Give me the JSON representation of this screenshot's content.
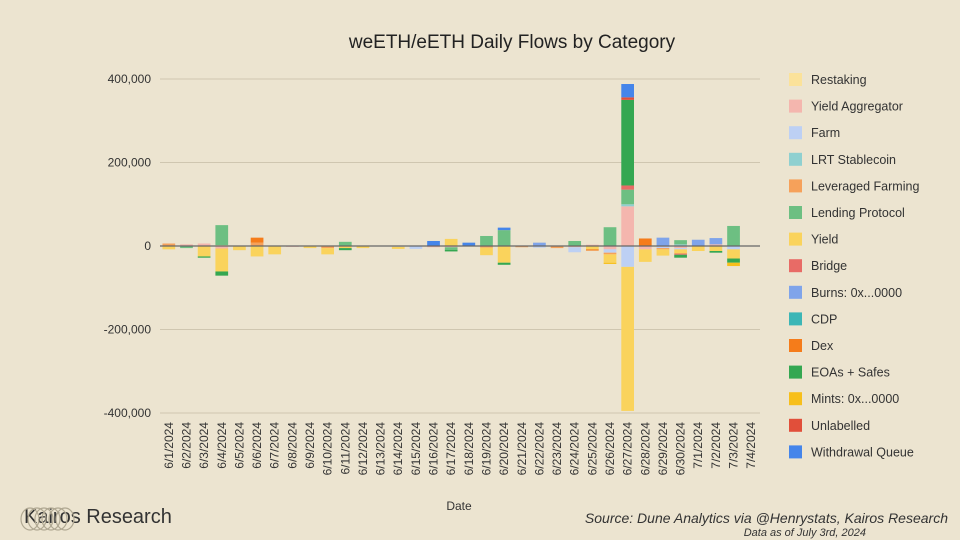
{
  "chart_data": {
    "type": "bar",
    "stacked": true,
    "title": "weETH/eETH Daily Flows by Category",
    "xlabel": "Date",
    "ylabel": "",
    "ylim": [
      -400000,
      400000
    ],
    "yticks": [
      400000,
      200000,
      0,
      -200000,
      -400000
    ],
    "ytick_labels": [
      "400,000",
      "200,000",
      "0",
      "-200,000",
      "-400,000"
    ],
    "grid": true,
    "legend_position": "right",
    "categories": [
      "6/1/2024",
      "6/2/2024",
      "6/3/2024",
      "6/4/2024",
      "6/5/2024",
      "6/6/2024",
      "6/7/2024",
      "6/8/2024",
      "6/9/2024",
      "6/10/2024",
      "6/11/2024",
      "6/12/2024",
      "6/13/2024",
      "6/14/2024",
      "6/15/2024",
      "6/16/2024",
      "6/17/2024",
      "6/18/2024",
      "6/19/2024",
      "6/20/2024",
      "6/21/2024",
      "6/22/2024",
      "6/23/2024",
      "6/24/2024",
      "6/25/2024",
      "6/26/2024",
      "6/27/2024",
      "6/28/2024",
      "6/29/2024",
      "6/30/2024",
      "7/1/2024",
      "7/2/2024",
      "7/3/2024",
      "7/4/2024"
    ],
    "series": [
      {
        "name": "Restaking",
        "color": "#fbe29a",
        "values": [
          0,
          0,
          0,
          2000,
          0,
          0,
          0,
          0,
          0,
          0,
          0,
          0,
          0,
          0,
          0,
          0,
          0,
          0,
          0,
          0,
          0,
          0,
          0,
          0,
          0,
          0,
          0,
          0,
          0,
          0,
          0,
          0,
          0,
          0
        ]
      },
      {
        "name": "Yield Aggregator",
        "color": "#f4b6ae",
        "values": [
          0,
          4000,
          6000,
          -6000,
          0,
          0,
          0,
          -2000,
          0,
          0,
          0,
          0,
          0,
          0,
          0,
          -3000,
          -3000,
          0,
          0,
          0,
          0,
          0,
          0,
          -3000,
          3000,
          -8000,
          95000,
          -8000,
          -2000,
          -5000,
          0,
          4000,
          0,
          0
        ]
      },
      {
        "name": "Farm",
        "color": "#bdd0f4",
        "values": [
          0,
          0,
          0,
          0,
          0,
          0,
          0,
          0,
          0,
          0,
          0,
          0,
          0,
          -2000,
          -7000,
          0,
          0,
          0,
          0,
          0,
          0,
          -4000,
          0,
          -12000,
          0,
          -8000,
          -50000,
          0,
          -3000,
          -3000,
          0,
          0,
          -8000,
          0
        ]
      },
      {
        "name": "LRT Stablecoin",
        "color": "#8fd0d0",
        "values": [
          0,
          0,
          0,
          0,
          0,
          0,
          0,
          0,
          0,
          0,
          0,
          0,
          0,
          0,
          0,
          0,
          0,
          0,
          0,
          0,
          0,
          0,
          0,
          0,
          0,
          0,
          5000,
          0,
          0,
          4000,
          0,
          0,
          0,
          0
        ]
      },
      {
        "name": "Leveraged Farming",
        "color": "#f6a15a",
        "values": [
          6000,
          0,
          0,
          0,
          0,
          8000,
          0,
          0,
          0,
          -5000,
          0,
          0,
          0,
          0,
          0,
          0,
          0,
          0,
          -4000,
          0,
          -3000,
          0,
          -5000,
          0,
          0,
          -4000,
          0,
          0,
          -3000,
          0,
          0,
          0,
          0,
          0
        ]
      },
      {
        "name": "Lending Protocol",
        "color": "#6dbf82",
        "values": [
          0,
          -5000,
          0,
          48000,
          0,
          0,
          0,
          0,
          0,
          0,
          10000,
          0,
          0,
          0,
          0,
          0,
          -6000,
          0,
          24000,
          38000,
          0,
          0,
          0,
          12000,
          0,
          45000,
          35000,
          0,
          0,
          10000,
          0,
          0,
          48000,
          0
        ]
      },
      {
        "name": "Yield",
        "color": "#fad35c",
        "values": [
          -8000,
          0,
          -25000,
          -55000,
          -10000,
          -25000,
          -20000,
          0,
          -5000,
          -15000,
          -5000,
          -5000,
          0,
          -5000,
          0,
          0,
          17000,
          0,
          -18000,
          -40000,
          0,
          0,
          0,
          0,
          -8000,
          -20000,
          -345000,
          -30000,
          -15000,
          -10000,
          -12000,
          -12000,
          -22000,
          0
        ]
      },
      {
        "name": "Bridge",
        "color": "#e86b66",
        "values": [
          0,
          0,
          0,
          0,
          0,
          0,
          0,
          0,
          0,
          0,
          0,
          0,
          0,
          0,
          0,
          0,
          0,
          0,
          0,
          0,
          0,
          0,
          0,
          0,
          0,
          0,
          10000,
          0,
          0,
          -3000,
          0,
          0,
          0,
          0
        ]
      },
      {
        "name": "Burns: 0x...0000",
        "color": "#7fa4ea",
        "values": [
          0,
          0,
          0,
          0,
          0,
          0,
          0,
          0,
          0,
          0,
          0,
          0,
          0,
          0,
          0,
          0,
          0,
          0,
          0,
          0,
          0,
          8000,
          0,
          0,
          0,
          0,
          0,
          0,
          20000,
          0,
          15000,
          15000,
          0,
          0
        ]
      },
      {
        "name": "CDP",
        "color": "#3cb6b6",
        "values": [
          0,
          0,
          0,
          0,
          0,
          0,
          0,
          0,
          0,
          0,
          0,
          0,
          0,
          0,
          0,
          0,
          0,
          0,
          0,
          0,
          0,
          0,
          0,
          0,
          0,
          0,
          0,
          0,
          0,
          0,
          0,
          0,
          0,
          0
        ]
      },
      {
        "name": "Dex",
        "color": "#f57c1a",
        "values": [
          0,
          0,
          0,
          0,
          0,
          12000,
          0,
          0,
          0,
          0,
          0,
          0,
          0,
          0,
          0,
          0,
          0,
          0,
          0,
          0,
          0,
          0,
          0,
          0,
          -3000,
          0,
          0,
          18000,
          0,
          0,
          0,
          0,
          0,
          0
        ]
      },
      {
        "name": "EOAs + Safes",
        "color": "#34a751",
        "values": [
          0,
          0,
          -3000,
          -10000,
          0,
          0,
          0,
          0,
          0,
          0,
          -5000,
          0,
          0,
          0,
          0,
          0,
          -4000,
          0,
          0,
          -5000,
          0,
          0,
          0,
          0,
          0,
          0,
          205000,
          0,
          0,
          -7000,
          0,
          -4000,
          -10000,
          0
        ]
      },
      {
        "name": "Mints: 0x...0000",
        "color": "#f7bf1b",
        "values": [
          0,
          0,
          0,
          0,
          0,
          0,
          0,
          0,
          0,
          0,
          0,
          0,
          0,
          0,
          0,
          0,
          0,
          0,
          0,
          0,
          0,
          0,
          0,
          0,
          0,
          -3000,
          0,
          0,
          0,
          0,
          0,
          0,
          -8000,
          0
        ]
      },
      {
        "name": "Unlabelled",
        "color": "#e14f3a",
        "values": [
          0,
          0,
          0,
          0,
          0,
          0,
          0,
          0,
          0,
          0,
          0,
          0,
          0,
          0,
          0,
          0,
          0,
          0,
          0,
          0,
          0,
          0,
          0,
          0,
          0,
          0,
          6000,
          0,
          0,
          0,
          0,
          0,
          0,
          0
        ]
      },
      {
        "name": "Withdrawal Queue",
        "color": "#4585ea",
        "values": [
          0,
          0,
          0,
          0,
          0,
          0,
          0,
          0,
          0,
          0,
          0,
          0,
          0,
          0,
          0,
          12000,
          0,
          8000,
          0,
          6000,
          0,
          0,
          0,
          0,
          0,
          0,
          32000,
          0,
          0,
          0,
          0,
          0,
          0,
          0
        ]
      }
    ]
  },
  "branding": {
    "company": "Kairos Research",
    "source": "Source: Dune Analytics via @Henrystats, Kairos Research",
    "as_of": "Data as of July 3rd, 2024"
  }
}
